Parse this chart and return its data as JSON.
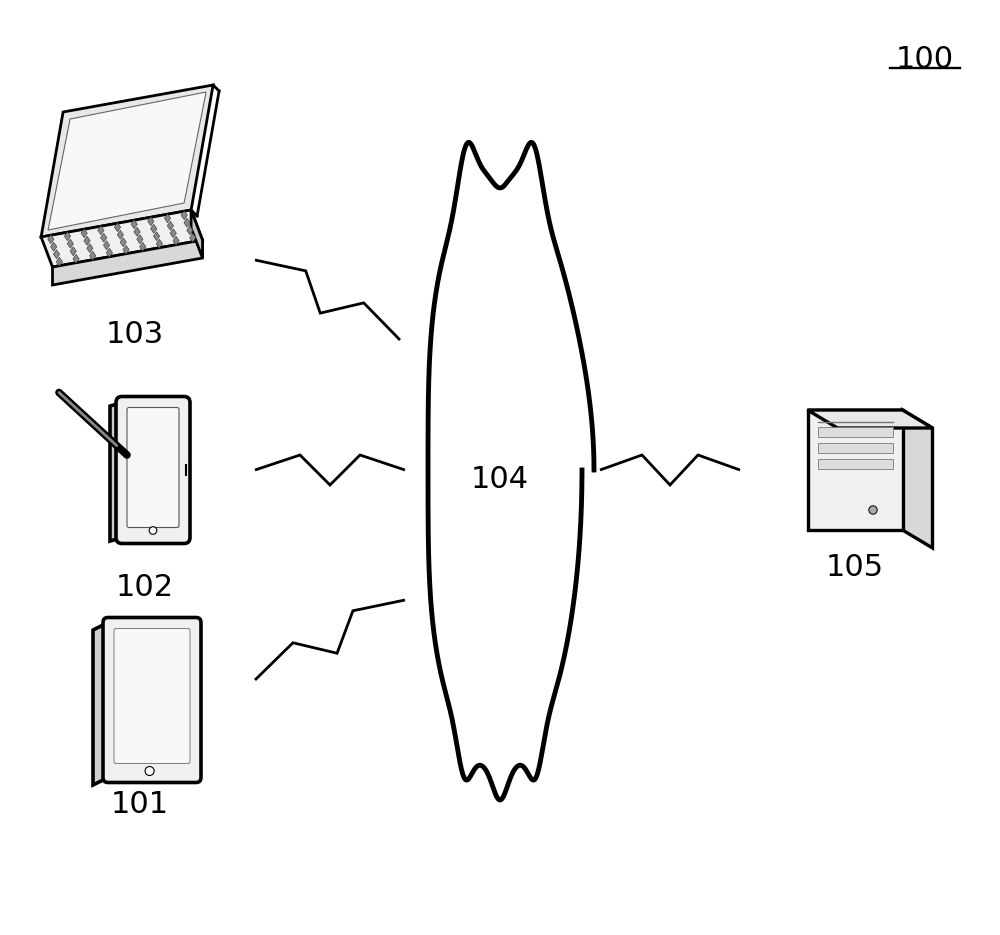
{
  "bg_color": "#ffffff",
  "label_100": "100",
  "label_101": "101",
  "label_102": "102",
  "label_103": "103",
  "label_104": "104",
  "label_105": "105",
  "label_color": "#000000",
  "line_color": "#000000",
  "line_width": 2.0,
  "cloud_color": "#000000",
  "cloud_fill": "#ffffff",
  "cloud_linewidth": 3.5,
  "figsize": [
    10.0,
    9.35
  ],
  "dpi": 100
}
